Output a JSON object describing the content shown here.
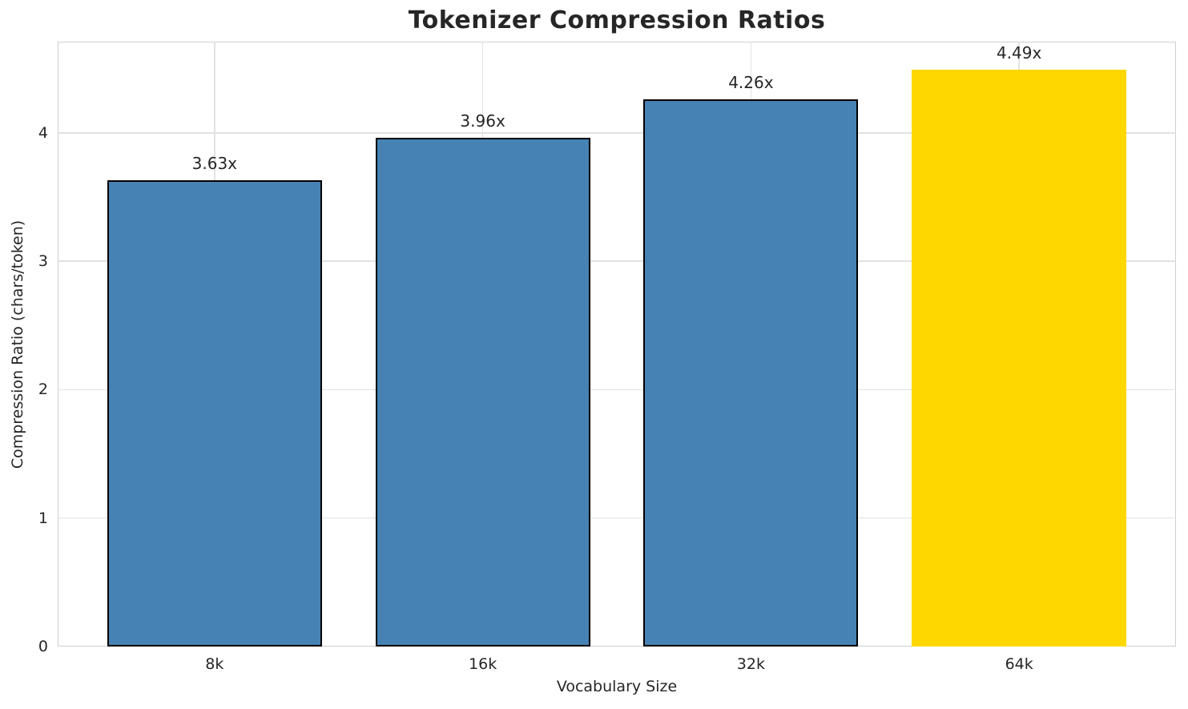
{
  "title": "Tokenizer Compression Ratios",
  "chart_data": {
    "type": "bar",
    "title": "Tokenizer Compression Ratios",
    "xlabel": "Vocabulary Size",
    "ylabel": "Compression Ratio (chars/token)",
    "categories": [
      "8k",
      "16k",
      "32k",
      "64k"
    ],
    "values": [
      3.63,
      3.96,
      4.26,
      4.49
    ],
    "bar_labels": [
      "3.63x",
      "3.96x",
      "4.26x",
      "4.49x"
    ],
    "yticks": [
      0,
      1,
      2,
      3,
      4
    ],
    "ylim": [
      0,
      4.71
    ],
    "grid": true,
    "legend": false,
    "bar_colors": [
      "#4682B4",
      "#4682B4",
      "#4682B4",
      "#FFD700"
    ],
    "edge_colors": [
      "#000000",
      "#000000",
      "#000000",
      "none"
    ],
    "colors": {
      "bar": "#4682B4",
      "highlight": "#FFD700",
      "edge": "#000000",
      "grid": "#e2e2e2",
      "spine": "#cfcfcf",
      "text": "#262626",
      "background": "#ffffff"
    }
  }
}
